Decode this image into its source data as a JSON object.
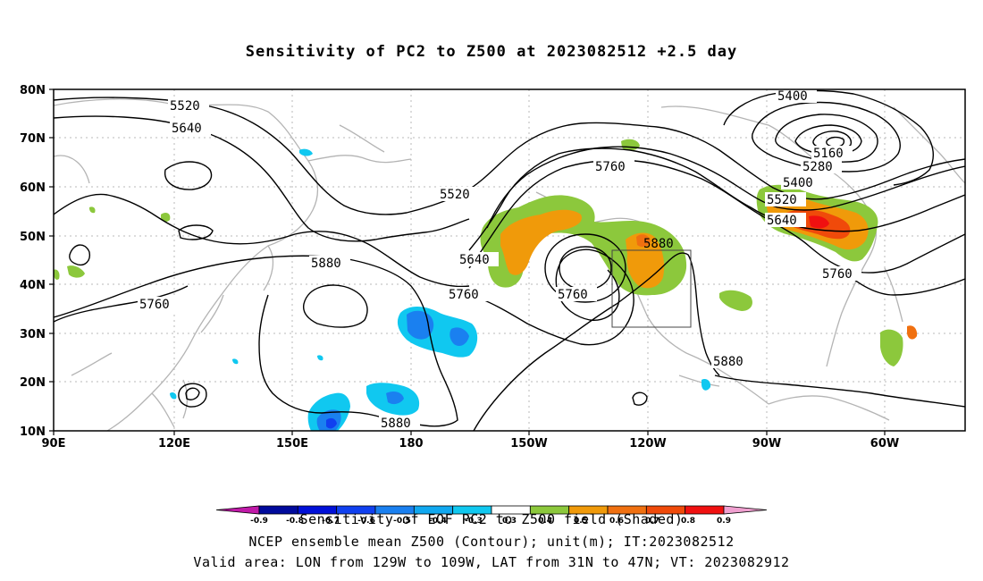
{
  "title": "Sensitivity of PC2 to Z500 at 2023082512 +2.5 day",
  "captions": {
    "line1": "Sensitivity of EOF PC2 to Z500 field (Shaded)",
    "line2": "NCEP ensemble mean Z500 (Contour); unit(m); IT:2023082512",
    "line3": "Valid area: LON from 129W to 109W, LAT from 31N to 47N; VT: 2023082912"
  },
  "axes": {
    "lat_labels": [
      "80N",
      "70N",
      "60N",
      "50N",
      "40N",
      "30N",
      "20N",
      "10N"
    ],
    "lon_labels": [
      "90E",
      "120E",
      "150E",
      "180",
      "150W",
      "120W",
      "90W",
      "60W"
    ]
  },
  "contour_labels": [
    "5520",
    "5640",
    "5400",
    "5160",
    "5280",
    "5400",
    "5520",
    "5640",
    "5760",
    "5520",
    "5880",
    "5640",
    "5760",
    "5760",
    "5760",
    "5880",
    "5760",
    "5880",
    "5880"
  ],
  "colorbar": {
    "labels": [
      "-0.9",
      "-0.8",
      "-0.7",
      "-0.6",
      "-0.5",
      "-0.4",
      "-0.3",
      "0.3",
      "0.4",
      "0.5",
      "0.6",
      "0.7",
      "0.8",
      "0.9"
    ],
    "colors": [
      "#c01aa8",
      "#000a9c",
      "#0010d8",
      "#1040f0",
      "#1a80f0",
      "#10a8f0",
      "#10c8f0",
      "#ffffff",
      "#8cc83c",
      "#f09a0a",
      "#f07010",
      "#f04a0a",
      "#f01010",
      "#f0a0d0"
    ]
  },
  "colors": {
    "green": "#8cc83c",
    "orange": "#f09a0a",
    "red_orange": "#f04a0a",
    "light_blue": "#10c8f0",
    "blue": "#1a80f0",
    "dark_blue": "#1040f0",
    "coast": "#b4b4b4"
  }
}
